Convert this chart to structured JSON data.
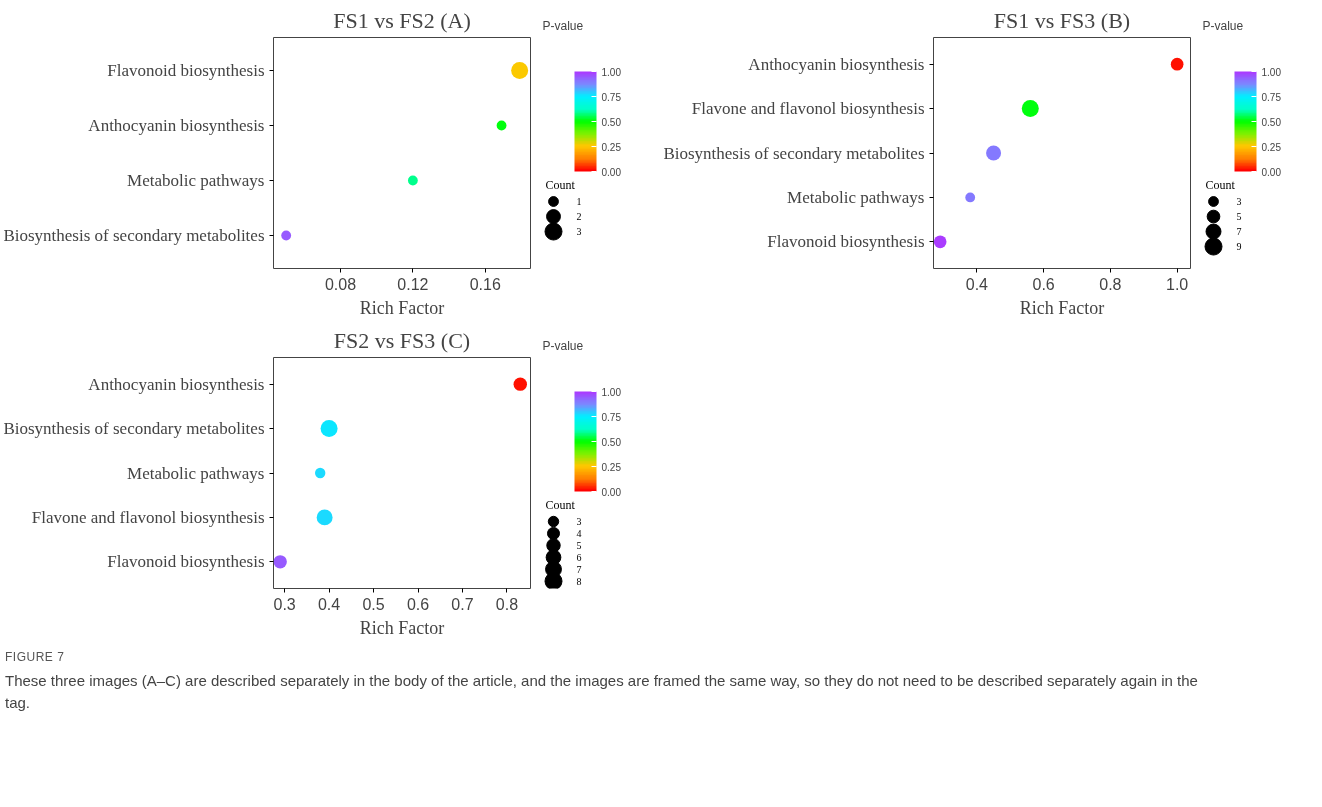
{
  "chart_data": [
    {
      "type": "bubble",
      "orientation": "horizontal",
      "title": "FS1 vs FS2 (A)",
      "xlabel": "Rich Factor",
      "clabel": "P-value",
      "legend_title": "Count",
      "grid": false,
      "categories": [
        "Flavonoid biosynthesis",
        "Anthocyanin biosynthesis",
        "Metabolic pathways",
        "Biosynthesis of secondary metabolites"
      ],
      "values": [
        0.179,
        0.169,
        0.12,
        0.05
      ],
      "sizes": [
        3,
        1,
        1,
        1
      ],
      "cvalues": [
        0.25,
        0.5,
        0.58,
        0.95
      ],
      "size_legend": [
        1,
        2,
        3
      ],
      "xlim": [
        0.043,
        0.185
      ],
      "xticks": [
        0.08,
        0.12,
        0.16
      ],
      "clim": [
        0,
        1
      ],
      "cticks": [
        {
          "value": 0,
          "label": "0.00"
        },
        {
          "value": 0.25,
          "label": "0.25"
        },
        {
          "value": 0.5,
          "label": "0.50"
        },
        {
          "value": 0.75,
          "label": "0.75"
        },
        {
          "value": 1,
          "label": "1.00"
        }
      ]
    },
    {
      "type": "bubble",
      "orientation": "horizontal",
      "title": "FS1 vs FS3 (B)",
      "xlabel": "Rich Factor",
      "clabel": "P-value",
      "legend_title": "Count",
      "grid": false,
      "categories": [
        "Anthocyanin biosynthesis",
        "Flavone and flavonol biosynthesis",
        "Biosynthesis of secondary metabolites",
        "Metabolic pathways",
        "Flavonoid biosynthesis"
      ],
      "values": [
        1.0,
        0.56,
        0.45,
        0.38,
        0.29
      ],
      "sizes": [
        5,
        9,
        7,
        3,
        5
      ],
      "cvalues": [
        0.02,
        0.5,
        0.9,
        0.9,
        1.0
      ],
      "size_legend": [
        3,
        5,
        7,
        9
      ],
      "xlim": [
        0.27,
        1.04
      ],
      "xticks": [
        0.4,
        0.6,
        0.8,
        {
          "value": 1.0,
          "label": "1.0"
        }
      ],
      "clim": [
        0,
        1
      ],
      "cticks": [
        {
          "value": 0,
          "label": "0.00"
        },
        {
          "value": 0.25,
          "label": "0.25"
        },
        {
          "value": 0.5,
          "label": "0.50"
        },
        {
          "value": 0.75,
          "label": "0.75"
        },
        {
          "value": 1,
          "label": "1.00"
        }
      ]
    },
    {
      "type": "bubble",
      "orientation": "horizontal",
      "title": "FS2 vs FS3 (C)",
      "xlabel": "Rich Factor",
      "clabel": "P-value",
      "legend_title": "Count",
      "grid": false,
      "categories": [
        "Anthocyanin biosynthesis",
        "Biosynthesis of secondary metabolites",
        "Metabolic pathways",
        "Flavone and flavonol biosynthesis",
        "Flavonoid biosynthesis"
      ],
      "values": [
        0.83,
        0.4,
        0.38,
        0.39,
        0.29
      ],
      "sizes": [
        5,
        8,
        3,
        7,
        5
      ],
      "cvalues": [
        0.02,
        0.75,
        0.78,
        0.78,
        0.95
      ],
      "size_legend": [
        3,
        4,
        5,
        6,
        7,
        8
      ],
      "xlim": [
        0.275,
        0.853
      ],
      "xticks": [
        0.3,
        0.4,
        0.5,
        0.6,
        0.7,
        0.8
      ],
      "clim": [
        0,
        1
      ],
      "cticks": [
        {
          "value": 0,
          "label": "0.00"
        },
        {
          "value": 0.25,
          "label": "0.25"
        },
        {
          "value": 0.5,
          "label": "0.50"
        },
        {
          "value": 0.75,
          "label": "0.75"
        },
        {
          "value": 1,
          "label": "1.00"
        }
      ],
      "annotations": [
        "FIGURE 7",
        "These three images (A–C) are described separately in the body of the article, and the images are framed the same way, so they do not need to be described separately again in the tag."
      ]
    }
  ]
}
